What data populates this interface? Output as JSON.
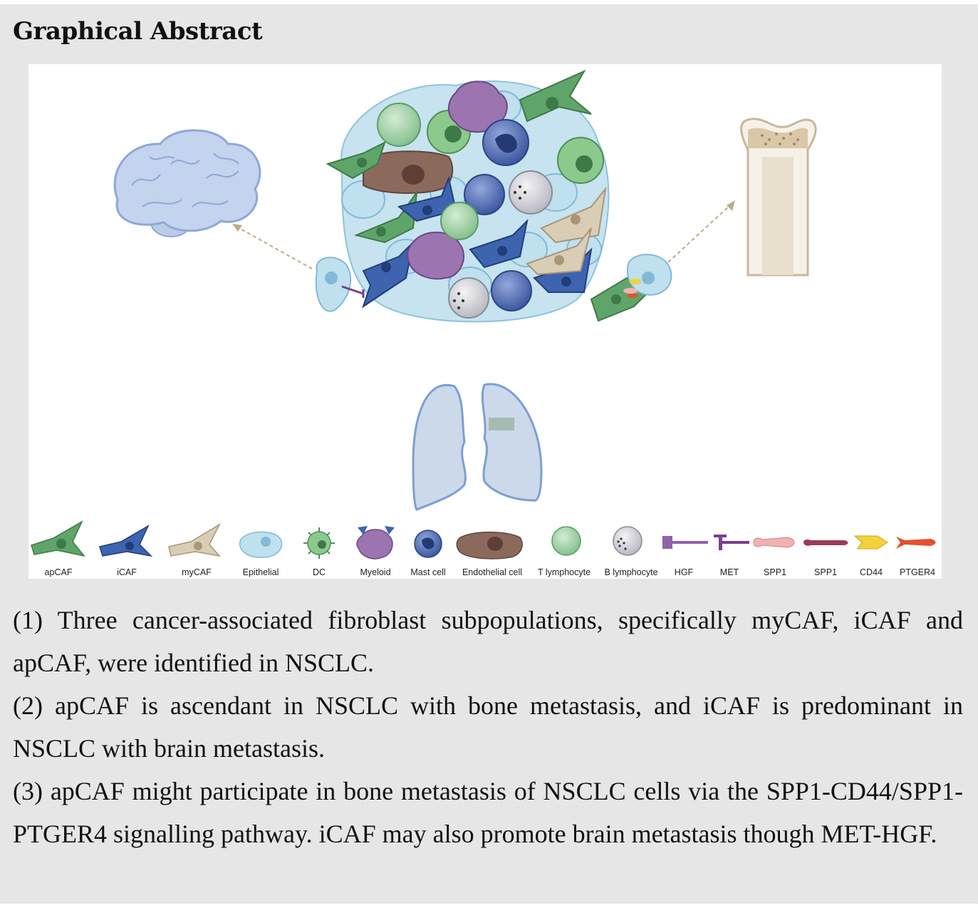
{
  "heading": "Graphical Abstract",
  "legend": [
    {
      "label": "apCAF",
      "icon": "fibroblast-green-icon",
      "color": "#5fa56a"
    },
    {
      "label": "iCAF",
      "icon": "fibroblast-blue-icon",
      "color": "#3e64b0"
    },
    {
      "label": "myCAF",
      "icon": "fibroblast-beige-icon",
      "color": "#d9cdb6"
    },
    {
      "label": "Epithelial",
      "icon": "epithelial-cell-icon",
      "color": "#bfe0ee"
    },
    {
      "label": "DC",
      "icon": "dendritic-cell-icon",
      "color": "#8cc98c"
    },
    {
      "label": "Myeloid",
      "icon": "myeloid-cell-icon",
      "color": "#9b74b0"
    },
    {
      "label": "Mast cell",
      "icon": "mast-cell-icon",
      "color": "#4d6fb2"
    },
    {
      "label": "Endothelial cell",
      "icon": "endothelial-cell-icon",
      "color": "#8b6a5c"
    },
    {
      "label": "T lymphocyte",
      "icon": "t-lymphocyte-icon",
      "color": "#a8d5ae"
    },
    {
      "label": "B lymphocyte",
      "icon": "b-lymphocyte-icon",
      "color": "#d9d9de"
    },
    {
      "label": "HGF",
      "icon": "hgf-ligand-icon",
      "color": "#8f63a8"
    },
    {
      "label": "MET",
      "icon": "met-receptor-icon",
      "color": "#7b3f8f"
    },
    {
      "label": "SPP1",
      "icon": "spp1-ligand-icon",
      "color": "#f2b1b1"
    },
    {
      "label": "SPP1",
      "icon": "spp1-ligand-dark-icon",
      "color": "#9b3a56"
    },
    {
      "label": "CD44",
      "icon": "cd44-receptor-icon",
      "color": "#f3d23c"
    },
    {
      "label": "PTGER4",
      "icon": "ptger4-receptor-icon",
      "color": "#e2522e"
    }
  ],
  "notes": [
    "(1) Three cancer-associated fibroblast subpopulations, specifically myCAF, iCAF and apCAF, were identified in NSCLC.",
    "(2) apCAF is ascendant in NSCLC with bone metastasis, and iCAF is predomi­nant in NSCLC with brain metastasis.",
    "(3) apCAF might participate in bone metastasis of NSCLC cells via the SPP1-CD44/SPP1-PTGER4 signalling pathway. iCAF may also promote brain metastasis though MET-HGF."
  ]
}
